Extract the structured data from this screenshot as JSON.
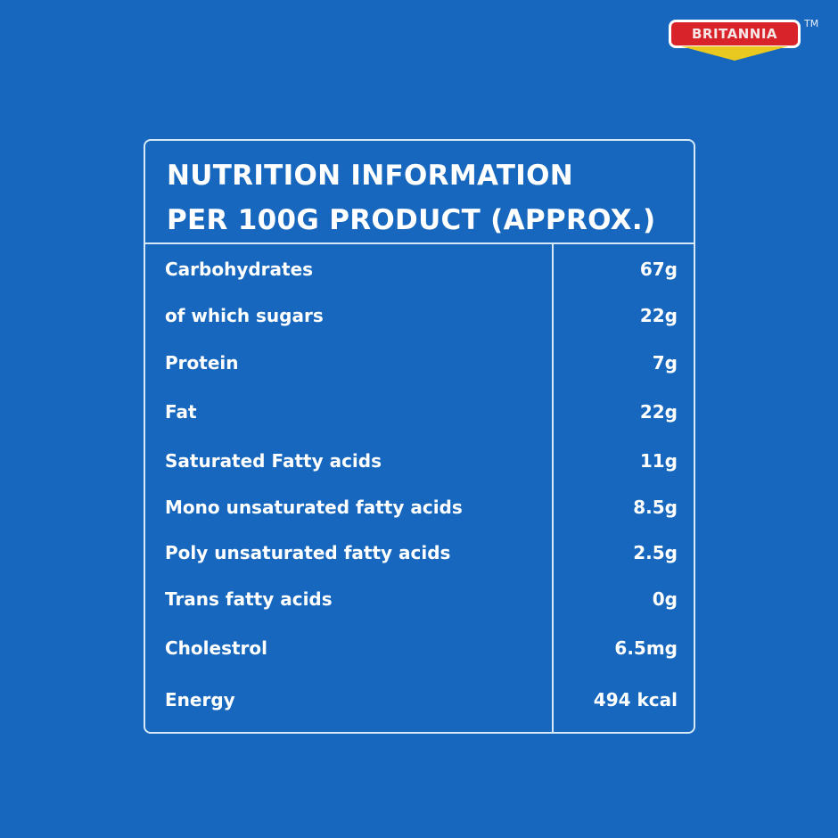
{
  "brand": {
    "logo_text": "BRITANNIA",
    "trademark": "TM",
    "colors": {
      "background": "#1667bd",
      "logo_red": "#d8232a",
      "logo_yellow": "#e9c81f"
    }
  },
  "table": {
    "title_line1": "NUTRITION INFORMATION",
    "title_line2": "PER 100G PRODUCT (APPROX.)",
    "rows": [
      {
        "name": "Carbohydrates",
        "value": "67g"
      },
      {
        "name": "of which sugars",
        "value": "22g"
      },
      {
        "name": "Protein",
        "value": "7g"
      },
      {
        "name": "Fat",
        "value": "22g"
      },
      {
        "name": "Saturated Fatty acids",
        "value": "11g"
      },
      {
        "name": "Mono unsaturated fatty acids",
        "value": "8.5g"
      },
      {
        "name": "Poly unsaturated fatty acids",
        "value": "2.5g"
      },
      {
        "name": "Trans fatty acids",
        "value": "0g"
      },
      {
        "name": "Cholestrol",
        "value": "6.5mg"
      },
      {
        "name": "Energy",
        "value": "494 kcal"
      }
    ]
  }
}
